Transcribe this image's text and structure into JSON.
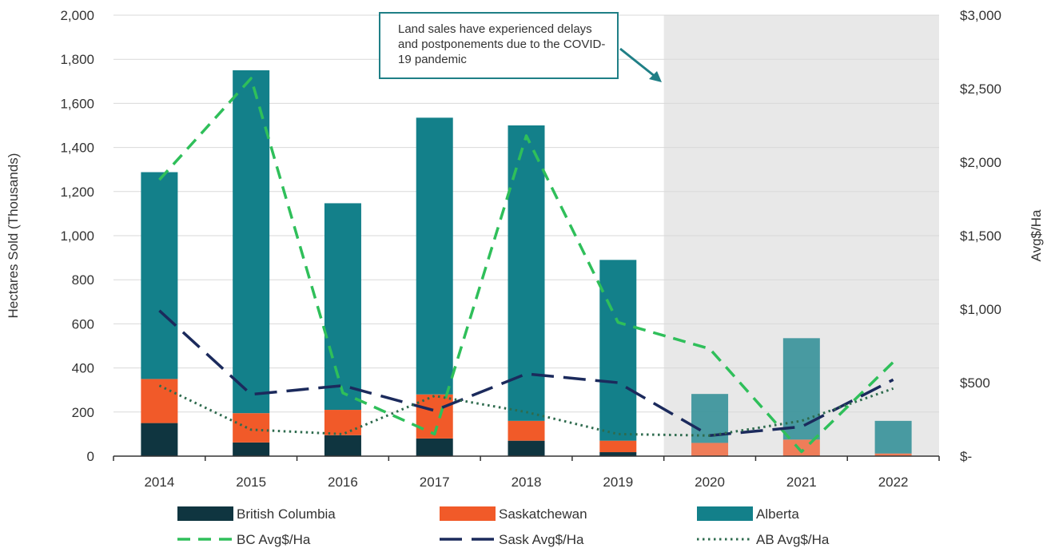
{
  "chart_data": {
    "type": "bar",
    "stacked": true,
    "categories": [
      "2014",
      "2015",
      "2016",
      "2017",
      "2018",
      "2019",
      "2020",
      "2021",
      "2022"
    ],
    "series": [
      {
        "name": "British Columbia",
        "kind": "bar",
        "axis": "left",
        "color": "#0f3540",
        "values": [
          150,
          62,
          95,
          80,
          70,
          18,
          0,
          0,
          0
        ]
      },
      {
        "name": "Saskatchewan",
        "kind": "bar",
        "axis": "left",
        "color": "#f15a29",
        "values": [
          200,
          133,
          115,
          200,
          90,
          52,
          60,
          75,
          12
        ]
      },
      {
        "name": "Alberta",
        "kind": "bar",
        "axis": "left",
        "color": "#13808a",
        "values": [
          938,
          1555,
          937,
          1255,
          1340,
          820,
          222,
          460,
          148
        ]
      },
      {
        "name": "BC Avg$/Ha",
        "kind": "line",
        "axis": "right",
        "color": "#2fbf5a",
        "dash": "dashed",
        "values": [
          1880,
          2570,
          430,
          150,
          2180,
          910,
          730,
          30,
          640
        ]
      },
      {
        "name": "Sask Avg$/Ha",
        "kind": "line",
        "axis": "right",
        "color": "#1b2a5c",
        "dash": "longdash",
        "values": [
          990,
          420,
          480,
          310,
          560,
          500,
          140,
          200,
          520
        ]
      },
      {
        "name": "AB Avg$/Ha",
        "kind": "line",
        "axis": "right",
        "color": "#2e6b4e",
        "dash": "dotted",
        "values": [
          480,
          180,
          150,
          410,
          300,
          150,
          140,
          240,
          460
        ]
      }
    ],
    "ylabel": "Hectares Sold (Thousands)",
    "y2label": "Avg$/Ha",
    "ylim": [
      0,
      2000
    ],
    "y2lim": [
      0,
      3000
    ],
    "yticks": [
      "0",
      "200",
      "400",
      "600",
      "800",
      "1,000",
      "1,200",
      "1,400",
      "1,600",
      "1,800",
      "2,000"
    ],
    "y2ticks": [
      "$-",
      "$500",
      "$1,000",
      "$1,500",
      "$2,000",
      "$2,500",
      "$3,000"
    ],
    "grid": true,
    "legend_position": "bottom",
    "shaded_region": {
      "from": "2020",
      "to": "2022",
      "color": "#e8e8e8"
    },
    "annotation": "Land sales have experienced delays and postponements due to the COVID-19 pandemic"
  }
}
